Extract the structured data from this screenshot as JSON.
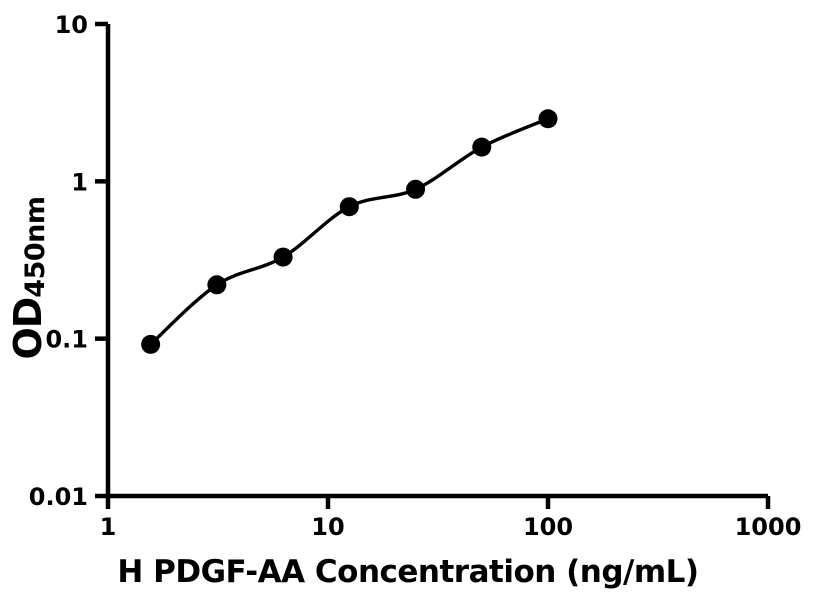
{
  "chart_data": {
    "type": "scatter",
    "title": "",
    "xlabel": "H PDGF-AA Concentration (ng/mL)",
    "ylabel_main": "OD",
    "ylabel_sub": "450nm",
    "xscale": "log",
    "yscale": "log",
    "xlim": [
      1,
      1000
    ],
    "ylim": [
      0.01,
      10
    ],
    "xticks": [
      1,
      10,
      100,
      1000
    ],
    "yticks": [
      10,
      1,
      0.1,
      0.01
    ],
    "xtick_labels": [
      "1",
      "10",
      "100",
      "1000"
    ],
    "ytick_labels": [
      "10",
      "1",
      "0.1",
      "0.01"
    ],
    "grid": false,
    "legend": null,
    "x": [
      1.5625,
      3.125,
      6.25,
      12.5,
      25,
      50,
      100
    ],
    "y": [
      0.092,
      0.22,
      0.33,
      0.69,
      0.89,
      1.65,
      2.5
    ],
    "marker_color": "#000000",
    "line_color": "#000000",
    "background_color": "#ffffff"
  }
}
